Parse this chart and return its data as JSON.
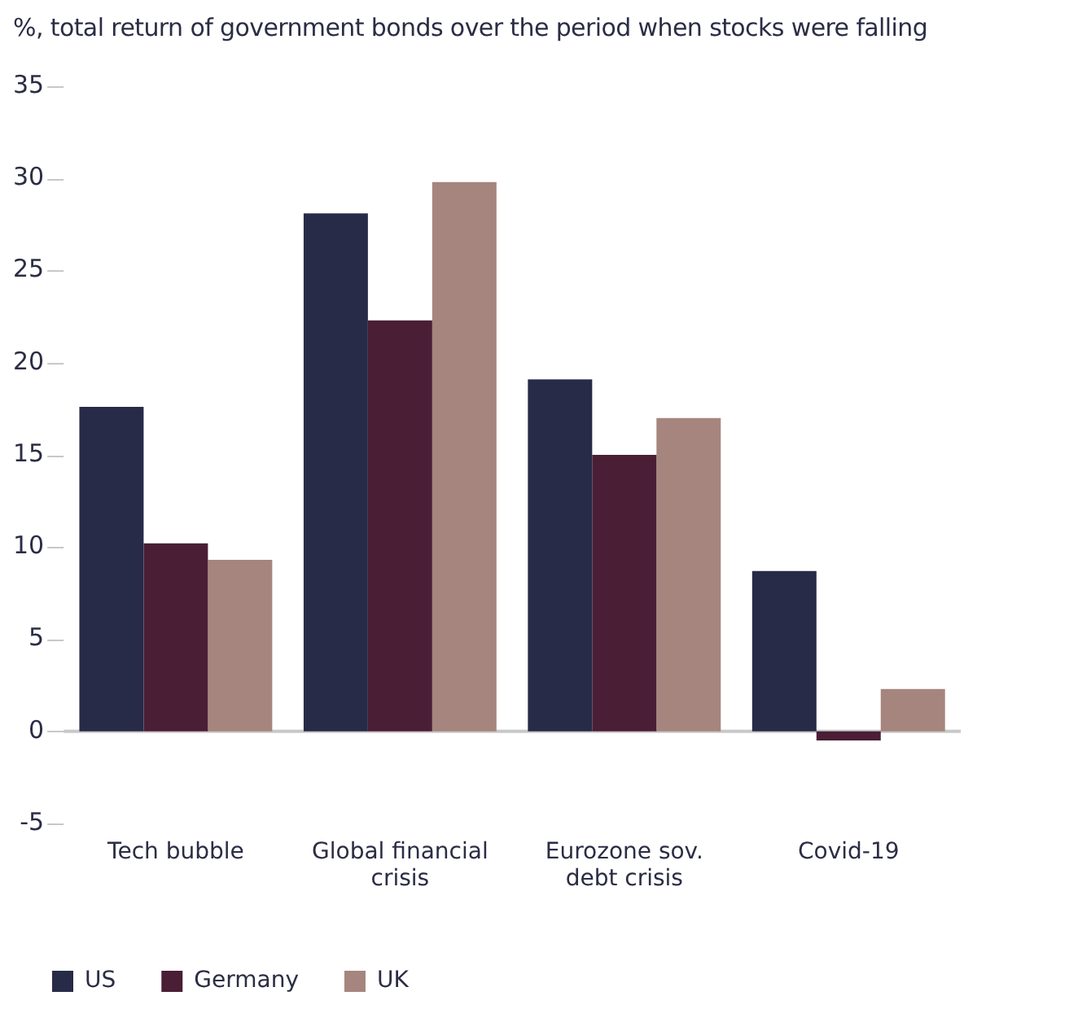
{
  "chart_data": {
    "type": "bar",
    "title": "%, total return of government bonds over the period when stocks were falling",
    "categories": [
      "Tech bubble",
      "Global financial crisis",
      "Eurozone sov. debt crisis",
      "Covid-19"
    ],
    "series": [
      {
        "name": "US",
        "color": "#272b48",
        "values": [
          17.6,
          28.1,
          19.1,
          8.7
        ]
      },
      {
        "name": "Germany",
        "color": "#4a1e35",
        "values": [
          10.2,
          22.3,
          15.0,
          -0.5
        ]
      },
      {
        "name": "UK",
        "color": "#a6857e",
        "values": [
          9.3,
          29.8,
          17.0,
          2.3
        ]
      }
    ],
    "ref_lines": [
      {
        "axis": "y",
        "value": 0,
        "color": "#c8c8c8"
      }
    ],
    "ylim": [
      -5,
      35
    ],
    "yticks": [
      -5,
      0,
      5,
      10,
      15,
      20,
      25,
      30,
      35
    ],
    "grid": false,
    "legend": "bottom left"
  }
}
